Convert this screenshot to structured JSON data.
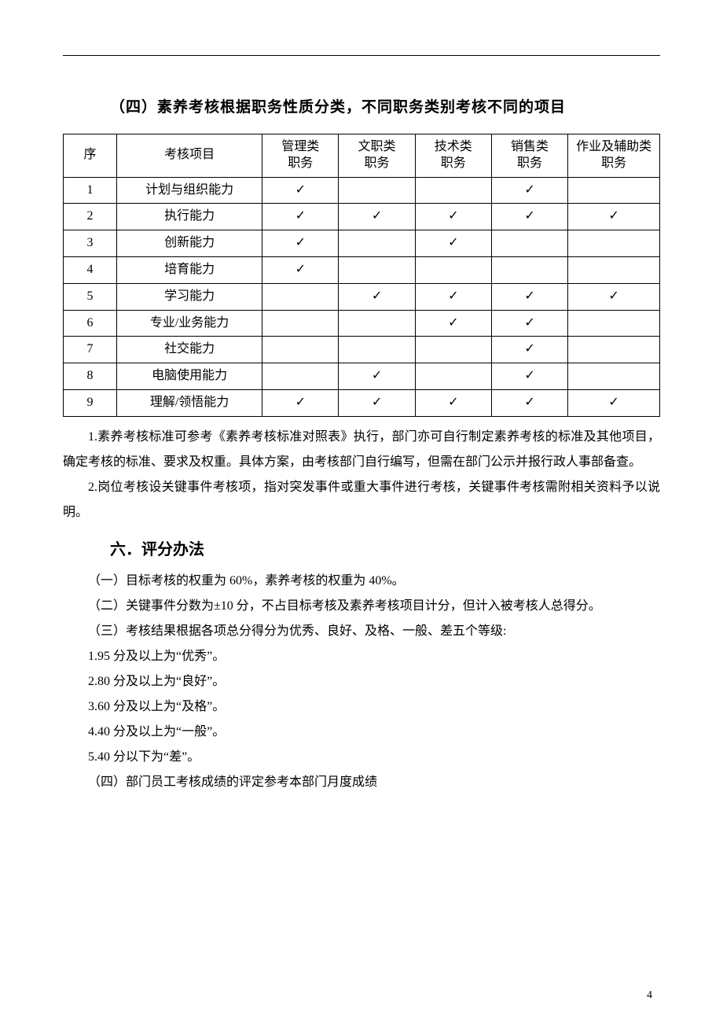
{
  "section_title": "（四）素养考核根据职务性质分类，不同职务类别考核不同的项目",
  "table": {
    "check_symbol": "✓",
    "columns": [
      "序",
      "考核项目",
      "管理类职务",
      "文职类职务",
      "技术类职务",
      "销售类职务",
      "作业及辅助类职务"
    ],
    "rows": [
      {
        "seq": "1",
        "item": "计划与组织能力",
        "marks": [
          true,
          false,
          false,
          true,
          false
        ]
      },
      {
        "seq": "2",
        "item": "执行能力",
        "marks": [
          true,
          true,
          true,
          true,
          true
        ]
      },
      {
        "seq": "3",
        "item": "创新能力",
        "marks": [
          true,
          false,
          true,
          false,
          false
        ]
      },
      {
        "seq": "4",
        "item": "培育能力",
        "marks": [
          true,
          false,
          false,
          false,
          false
        ]
      },
      {
        "seq": "5",
        "item": "学习能力",
        "marks": [
          false,
          true,
          true,
          true,
          true
        ]
      },
      {
        "seq": "6",
        "item": "专业/业务能力",
        "marks": [
          false,
          false,
          true,
          true,
          false
        ]
      },
      {
        "seq": "7",
        "item": "社交能力",
        "marks": [
          false,
          false,
          false,
          true,
          false
        ]
      },
      {
        "seq": "8",
        "item": "电脑使用能力",
        "marks": [
          false,
          true,
          false,
          true,
          false
        ]
      },
      {
        "seq": "9",
        "item": "理解/领悟能力",
        "marks": [
          true,
          true,
          true,
          true,
          true
        ]
      }
    ]
  },
  "note1": "1.素养考核标准可参考《素养考核标准对照表》执行，部门亦可自行制定素养考核的标准及其他项目，确定考核的标准、要求及权重。具体方案，由考核部门自行编写，但需在部门公示并报行政人事部备查。",
  "note2": "2.岗位考核设关键事件考核项，指对突发事件或重大事件进行考核，关键事件考核需附相关资料予以说明。",
  "scoring_title": "六．评分办法",
  "scoring_items": [
    "（一）目标考核的权重为 60%，素养考核的权重为 40%。",
    "（二）关键事件分数为±10 分，不占目标考核及素养考核项目计分，但计入被考核人总得分。",
    "（三）考核结果根据各项总分得分为优秀、良好、及格、一般、差五个等级:",
    "1.95 分及以上为“优秀”。",
    "2.80 分及以上为“良好”。",
    "3.60 分及以上为“及格”。",
    "4.40 分及以上为“一般”。",
    "5.40 分以下为“差”。",
    "（四）部门员工考核成绩的评定参考本部门月度成绩"
  ],
  "page_number": "4"
}
